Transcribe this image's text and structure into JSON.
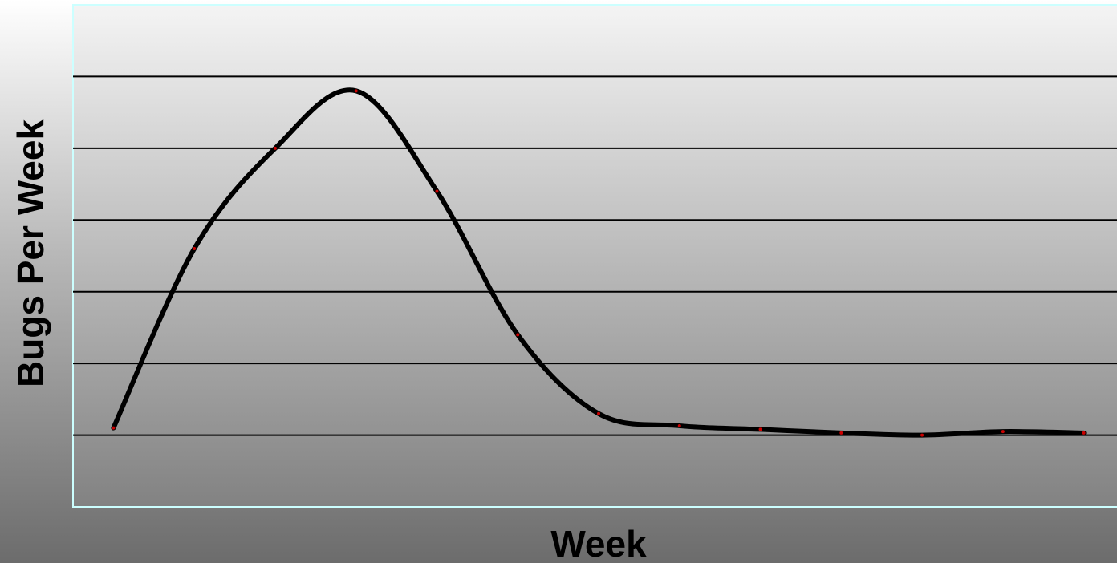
{
  "chart_data": {
    "type": "line",
    "title": "",
    "xlabel": "Week",
    "ylabel": "Bugs Per Week",
    "x": [
      1,
      2,
      3,
      4,
      5,
      6,
      7,
      8,
      9,
      10,
      11,
      12,
      13
    ],
    "series": [
      {
        "values": [
          0.1,
          2.6,
          4.0,
          4.8,
          3.4,
          1.4,
          0.3,
          0.13,
          0.08,
          0.03,
          0.0,
          0.05,
          0.03
        ]
      }
    ],
    "xlim": [
      0.5,
      13.5
    ],
    "ylim": [
      -1,
      6
    ],
    "y_gridlines": [
      0,
      1,
      2,
      3,
      4,
      5
    ],
    "tick_labels_shown": false,
    "grid": true,
    "legend": "none",
    "colors": {
      "line": "#000000",
      "markers": "#cc0000",
      "gridlines": "#000000",
      "plot_border": "#ccffff"
    }
  }
}
